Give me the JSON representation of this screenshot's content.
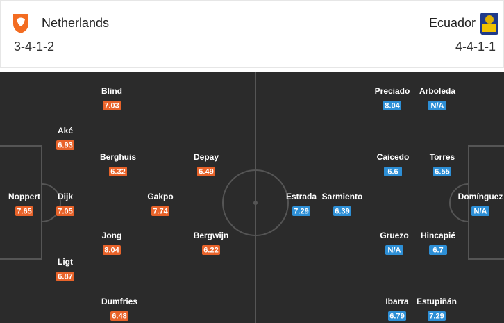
{
  "header": {
    "home": {
      "name": "Netherlands",
      "formation": "3-4-1-2"
    },
    "away": {
      "name": "Ecuador",
      "formation": "4-4-1-1"
    }
  },
  "lineups": {
    "home": [
      {
        "name": "Blind",
        "rating": "7.03"
      },
      {
        "name": "Aké",
        "rating": "6.93"
      },
      {
        "name": "Berghuis",
        "rating": "6.32"
      },
      {
        "name": "Depay",
        "rating": "6.49"
      },
      {
        "name": "Noppert",
        "rating": "7.65"
      },
      {
        "name": "Dijk",
        "rating": "7.05"
      },
      {
        "name": "Gakpo",
        "rating": "7.74"
      },
      {
        "name": "Jong",
        "rating": "8.04"
      },
      {
        "name": "Bergwijn",
        "rating": "6.22"
      },
      {
        "name": "Ligt",
        "rating": "6.87"
      },
      {
        "name": "Dumfries",
        "rating": "6.48"
      }
    ],
    "away": [
      {
        "name": "Preciado",
        "rating": "8.04"
      },
      {
        "name": "Arboleda",
        "rating": "N/A"
      },
      {
        "name": "Caicedo",
        "rating": "6.6"
      },
      {
        "name": "Torres",
        "rating": "6.55"
      },
      {
        "name": "Estrada",
        "rating": "7.29"
      },
      {
        "name": "Sarmiento",
        "rating": "6.39"
      },
      {
        "name": "Domínguez",
        "rating": "N/A"
      },
      {
        "name": "Gruezo",
        "rating": "N/A"
      },
      {
        "name": "Hincapié",
        "rating": "6.7"
      },
      {
        "name": "Ibarra",
        "rating": "6.79"
      },
      {
        "name": "Estupiñán",
        "rating": "7.29"
      }
    ]
  }
}
